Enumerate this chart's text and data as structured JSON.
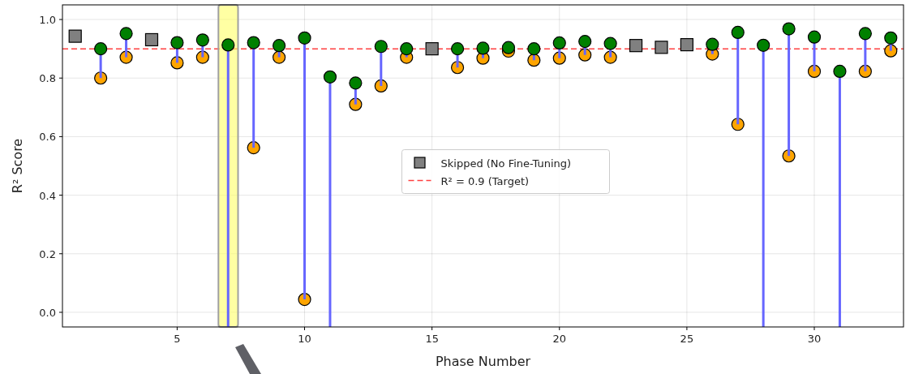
{
  "chart_data": {
    "type": "scatter",
    "xlabel": "Phase Number",
    "ylabel": "R² Score",
    "xlim": [
      0.5,
      33.5
    ],
    "ylim": [
      -0.05,
      1.05
    ],
    "xticks": [
      5,
      10,
      15,
      20,
      25,
      30
    ],
    "yticks": [
      {
        "value": 0,
        "label": "0.0"
      },
      {
        "value": 0.2,
        "label": "0.2"
      },
      {
        "value": 0.4,
        "label": "0.4"
      },
      {
        "value": 0.6,
        "label": "0.6"
      },
      {
        "value": 0.8,
        "label": "0.8"
      },
      {
        "value": 1,
        "label": "1.0"
      }
    ],
    "grid": true,
    "legend": "center",
    "bands": [
      {
        "axis": "x",
        "from": 6.62,
        "to": 7.39,
        "color": "#ffff66"
      }
    ],
    "ref_lines": [
      {
        "axis": "y",
        "value": 0.9,
        "label": "R² = 0.9 (Target)",
        "color": "#ff4040",
        "line_style": "dashed"
      }
    ],
    "series": [
      {
        "color": "#ffa500",
        "marker": "circle",
        "x": [
          2,
          3,
          5,
          6,
          7,
          8,
          9,
          10,
          11,
          12,
          13,
          14,
          16,
          17,
          18,
          19,
          20,
          21,
          22,
          26,
          27,
          28,
          29,
          30,
          31,
          32,
          33
        ],
        "values": [
          0.8,
          0.871,
          0.852,
          0.871,
          null,
          0.562,
          0.871,
          0.044,
          null,
          0.71,
          0.773,
          0.871,
          0.836,
          0.868,
          0.892,
          0.861,
          0.868,
          0.879,
          0.871,
          0.882,
          0.642,
          null,
          0.534,
          0.823,
          null,
          0.823,
          0.893
        ]
      },
      {
        "color": "#008000",
        "marker": "circle",
        "x": [
          2,
          3,
          5,
          6,
          7,
          8,
          9,
          10,
          11,
          12,
          13,
          14,
          16,
          17,
          18,
          19,
          20,
          21,
          22,
          26,
          27,
          28,
          29,
          30,
          31,
          32,
          33
        ],
        "values": [
          0.9,
          0.952,
          0.921,
          0.93,
          0.913,
          0.921,
          0.911,
          0.937,
          0.804,
          0.783,
          0.908,
          0.9,
          0.9,
          0.902,
          0.904,
          0.9,
          0.92,
          0.925,
          0.918,
          0.915,
          0.956,
          0.912,
          0.968,
          0.94,
          0.823,
          0.952,
          0.937
        ],
        "errors": [
          [
            0.8,
            0.9
          ],
          [
            0.871,
            0.952
          ],
          [
            0.852,
            0.921
          ],
          [
            0.871,
            0.93
          ],
          [
            -0.05,
            0.913
          ],
          [
            0.562,
            0.921
          ],
          [
            0.871,
            0.911
          ],
          [
            0.044,
            0.937
          ],
          [
            -0.05,
            0.804
          ],
          [
            0.71,
            0.783
          ],
          [
            0.773,
            0.908
          ],
          [
            0.871,
            0.9
          ],
          [
            0.836,
            0.9
          ],
          [
            0.868,
            0.902
          ],
          null,
          [
            0.861,
            0.9
          ],
          [
            0.868,
            0.92
          ],
          [
            0.879,
            0.925
          ],
          [
            0.871,
            0.918
          ],
          [
            0.882,
            0.915
          ],
          [
            0.642,
            0.956
          ],
          [
            -0.05,
            0.912
          ],
          [
            0.534,
            0.968
          ],
          [
            0.823,
            0.94
          ],
          [
            -0.05,
            0.823
          ],
          [
            0.823,
            0.952
          ],
          [
            0.893,
            0.937
          ]
        ]
      },
      {
        "name": "Skipped (No Fine-Tuning)",
        "color": "#808080",
        "marker": "square",
        "x": [
          1,
          4,
          15,
          23,
          24,
          25
        ],
        "values": [
          0.943,
          0.931,
          0.9,
          0.911,
          0.905,
          0.914
        ]
      }
    ]
  }
}
